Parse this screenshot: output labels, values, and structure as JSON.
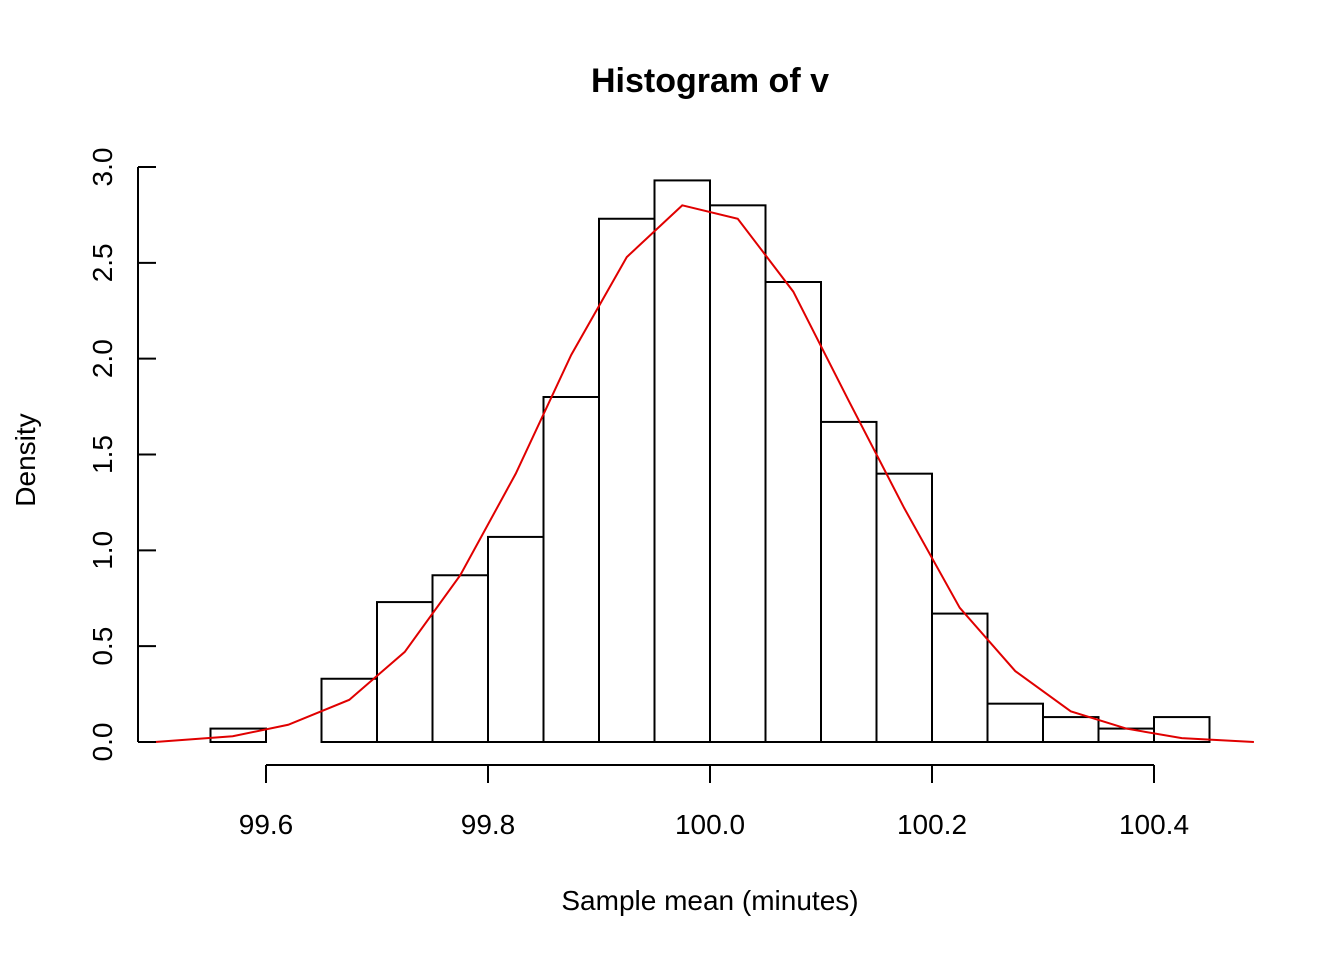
{
  "chart_data": {
    "type": "histogram",
    "title": "Histogram of v",
    "xlabel": "Sample mean (minutes)",
    "ylabel": "Density",
    "xlim": [
      99.5,
      100.5
    ],
    "ylim": [
      0,
      3.0
    ],
    "x_ticks": [
      99.6,
      99.8,
      100.0,
      100.2,
      100.4
    ],
    "x_tick_labels": [
      "99.6",
      "99.8",
      "100.0",
      "100.2",
      "100.4"
    ],
    "y_ticks": [
      0.0,
      0.5,
      1.0,
      1.5,
      2.0,
      2.5,
      3.0
    ],
    "y_tick_labels": [
      "0.0",
      "0.5",
      "1.0",
      "1.5",
      "2.0",
      "2.5",
      "3.0"
    ],
    "grid": false,
    "bins": [
      {
        "x0": 99.55,
        "x1": 99.6,
        "density": 0.07
      },
      {
        "x0": 99.6,
        "x1": 99.65,
        "density": 0.0
      },
      {
        "x0": 99.65,
        "x1": 99.7,
        "density": 0.33
      },
      {
        "x0": 99.7,
        "x1": 99.75,
        "density": 0.73
      },
      {
        "x0": 99.75,
        "x1": 99.8,
        "density": 0.87
      },
      {
        "x0": 99.8,
        "x1": 99.85,
        "density": 1.07
      },
      {
        "x0": 99.85,
        "x1": 99.9,
        "density": 1.8
      },
      {
        "x0": 99.9,
        "x1": 99.95,
        "density": 2.73
      },
      {
        "x0": 99.95,
        "x1": 100.0,
        "density": 2.93
      },
      {
        "x0": 100.0,
        "x1": 100.05,
        "density": 2.8
      },
      {
        "x0": 100.05,
        "x1": 100.1,
        "density": 2.4
      },
      {
        "x0": 100.1,
        "x1": 100.15,
        "density": 1.67
      },
      {
        "x0": 100.15,
        "x1": 100.2,
        "density": 1.4
      },
      {
        "x0": 100.2,
        "x1": 100.25,
        "density": 0.67
      },
      {
        "x0": 100.25,
        "x1": 100.3,
        "density": 0.2
      },
      {
        "x0": 100.3,
        "x1": 100.35,
        "density": 0.13
      },
      {
        "x0": 100.35,
        "x1": 100.4,
        "density": 0.07
      },
      {
        "x0": 100.4,
        "x1": 100.45,
        "density": 0.13
      }
    ],
    "density_curve": {
      "color": "#e00000",
      "x": [
        99.5,
        99.57,
        99.62,
        99.675,
        99.725,
        99.775,
        99.825,
        99.875,
        99.925,
        99.975,
        100.025,
        100.075,
        100.125,
        100.175,
        100.225,
        100.275,
        100.325,
        100.375,
        100.425,
        100.49
      ],
      "y": [
        0.0,
        0.03,
        0.09,
        0.22,
        0.47,
        0.87,
        1.4,
        2.02,
        2.53,
        2.8,
        2.73,
        2.35,
        1.78,
        1.22,
        0.7,
        0.37,
        0.16,
        0.07,
        0.02,
        0.0
      ]
    }
  }
}
